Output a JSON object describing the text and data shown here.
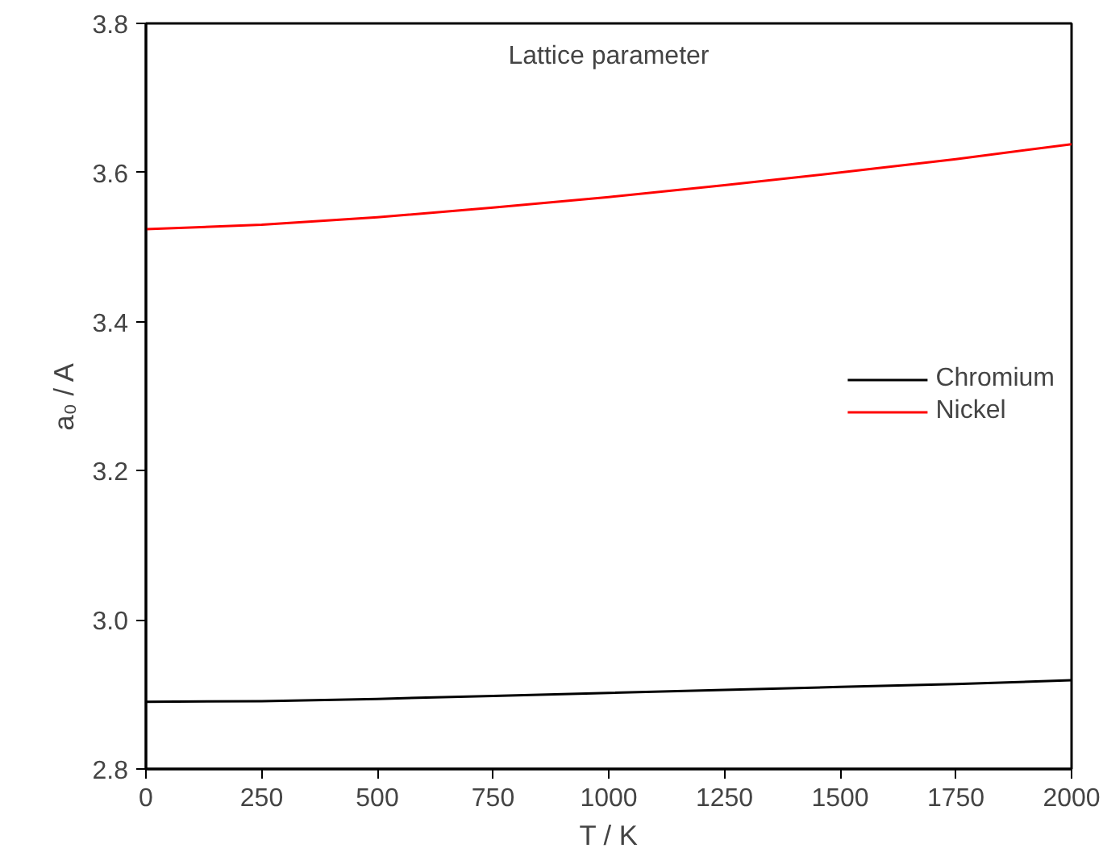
{
  "chart_data": {
    "type": "line",
    "title": "Lattice parameter",
    "xlabel": "T / K",
    "ylabel": "a₀ / A",
    "x": [
      0,
      250,
      500,
      750,
      1000,
      1250,
      1500,
      1750,
      2000
    ],
    "series": [
      {
        "name": "Chromium",
        "color": "#000000",
        "values": [
          2.89,
          2.891,
          2.894,
          2.898,
          2.902,
          2.906,
          2.91,
          2.914,
          2.919
        ]
      },
      {
        "name": "Nickel",
        "color": "#ff0000",
        "values": [
          3.524,
          3.53,
          3.54,
          3.553,
          3.567,
          3.583,
          3.6,
          3.618,
          3.638
        ]
      }
    ],
    "xlim": [
      0,
      2000
    ],
    "ylim": [
      2.8,
      3.8
    ],
    "xticks": [
      0,
      250,
      500,
      750,
      1000,
      1250,
      1500,
      1750,
      2000
    ],
    "yticks": [
      {
        "value": 2.8,
        "label": "2.8"
      },
      {
        "value": 3.0,
        "label": "3.0"
      },
      {
        "value": 3.2,
        "label": "3.2"
      },
      {
        "value": 3.4,
        "label": "3.4"
      },
      {
        "value": 3.6,
        "label": "3.6"
      },
      {
        "value": 3.8,
        "label": "3.8"
      }
    ],
    "grid": false,
    "legend": "right",
    "marker": "none",
    "line_style": "solid"
  }
}
